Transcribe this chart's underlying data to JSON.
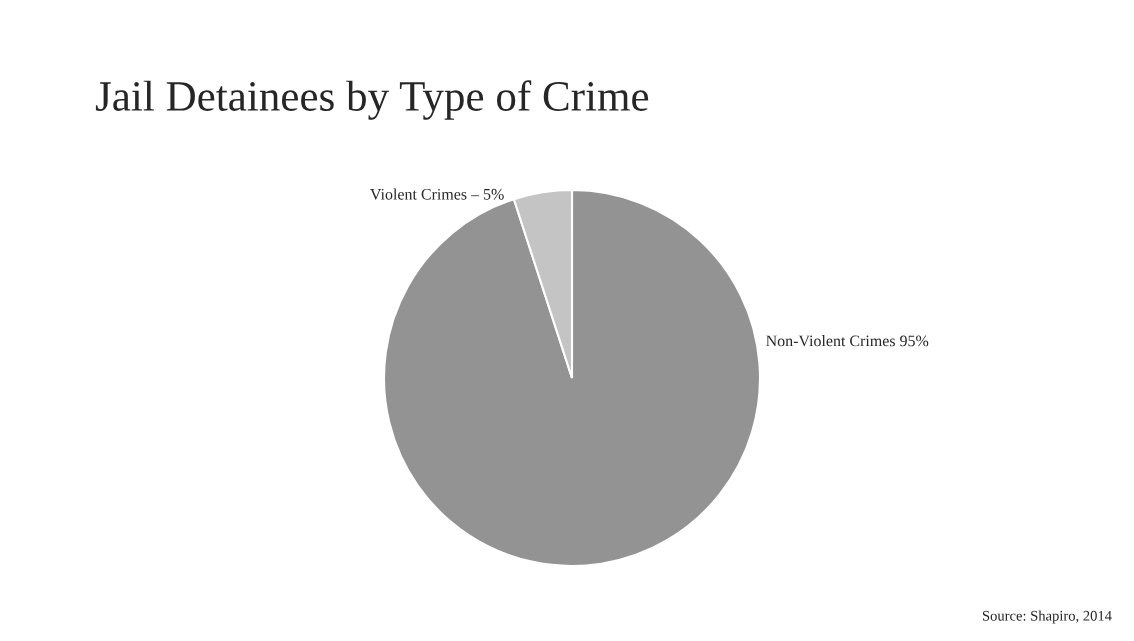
{
  "chart_data": {
    "type": "pie",
    "title": "Jail Detainees by Type of Crime",
    "categories": [
      "Non-Violent Crimes 95%",
      "Violent Crimes – 5%"
    ],
    "values": [
      95,
      5
    ],
    "colors": [
      "#939393",
      "#c4c4c4"
    ],
    "annotations": [
      "Source: Shapiro, 2014"
    ]
  }
}
